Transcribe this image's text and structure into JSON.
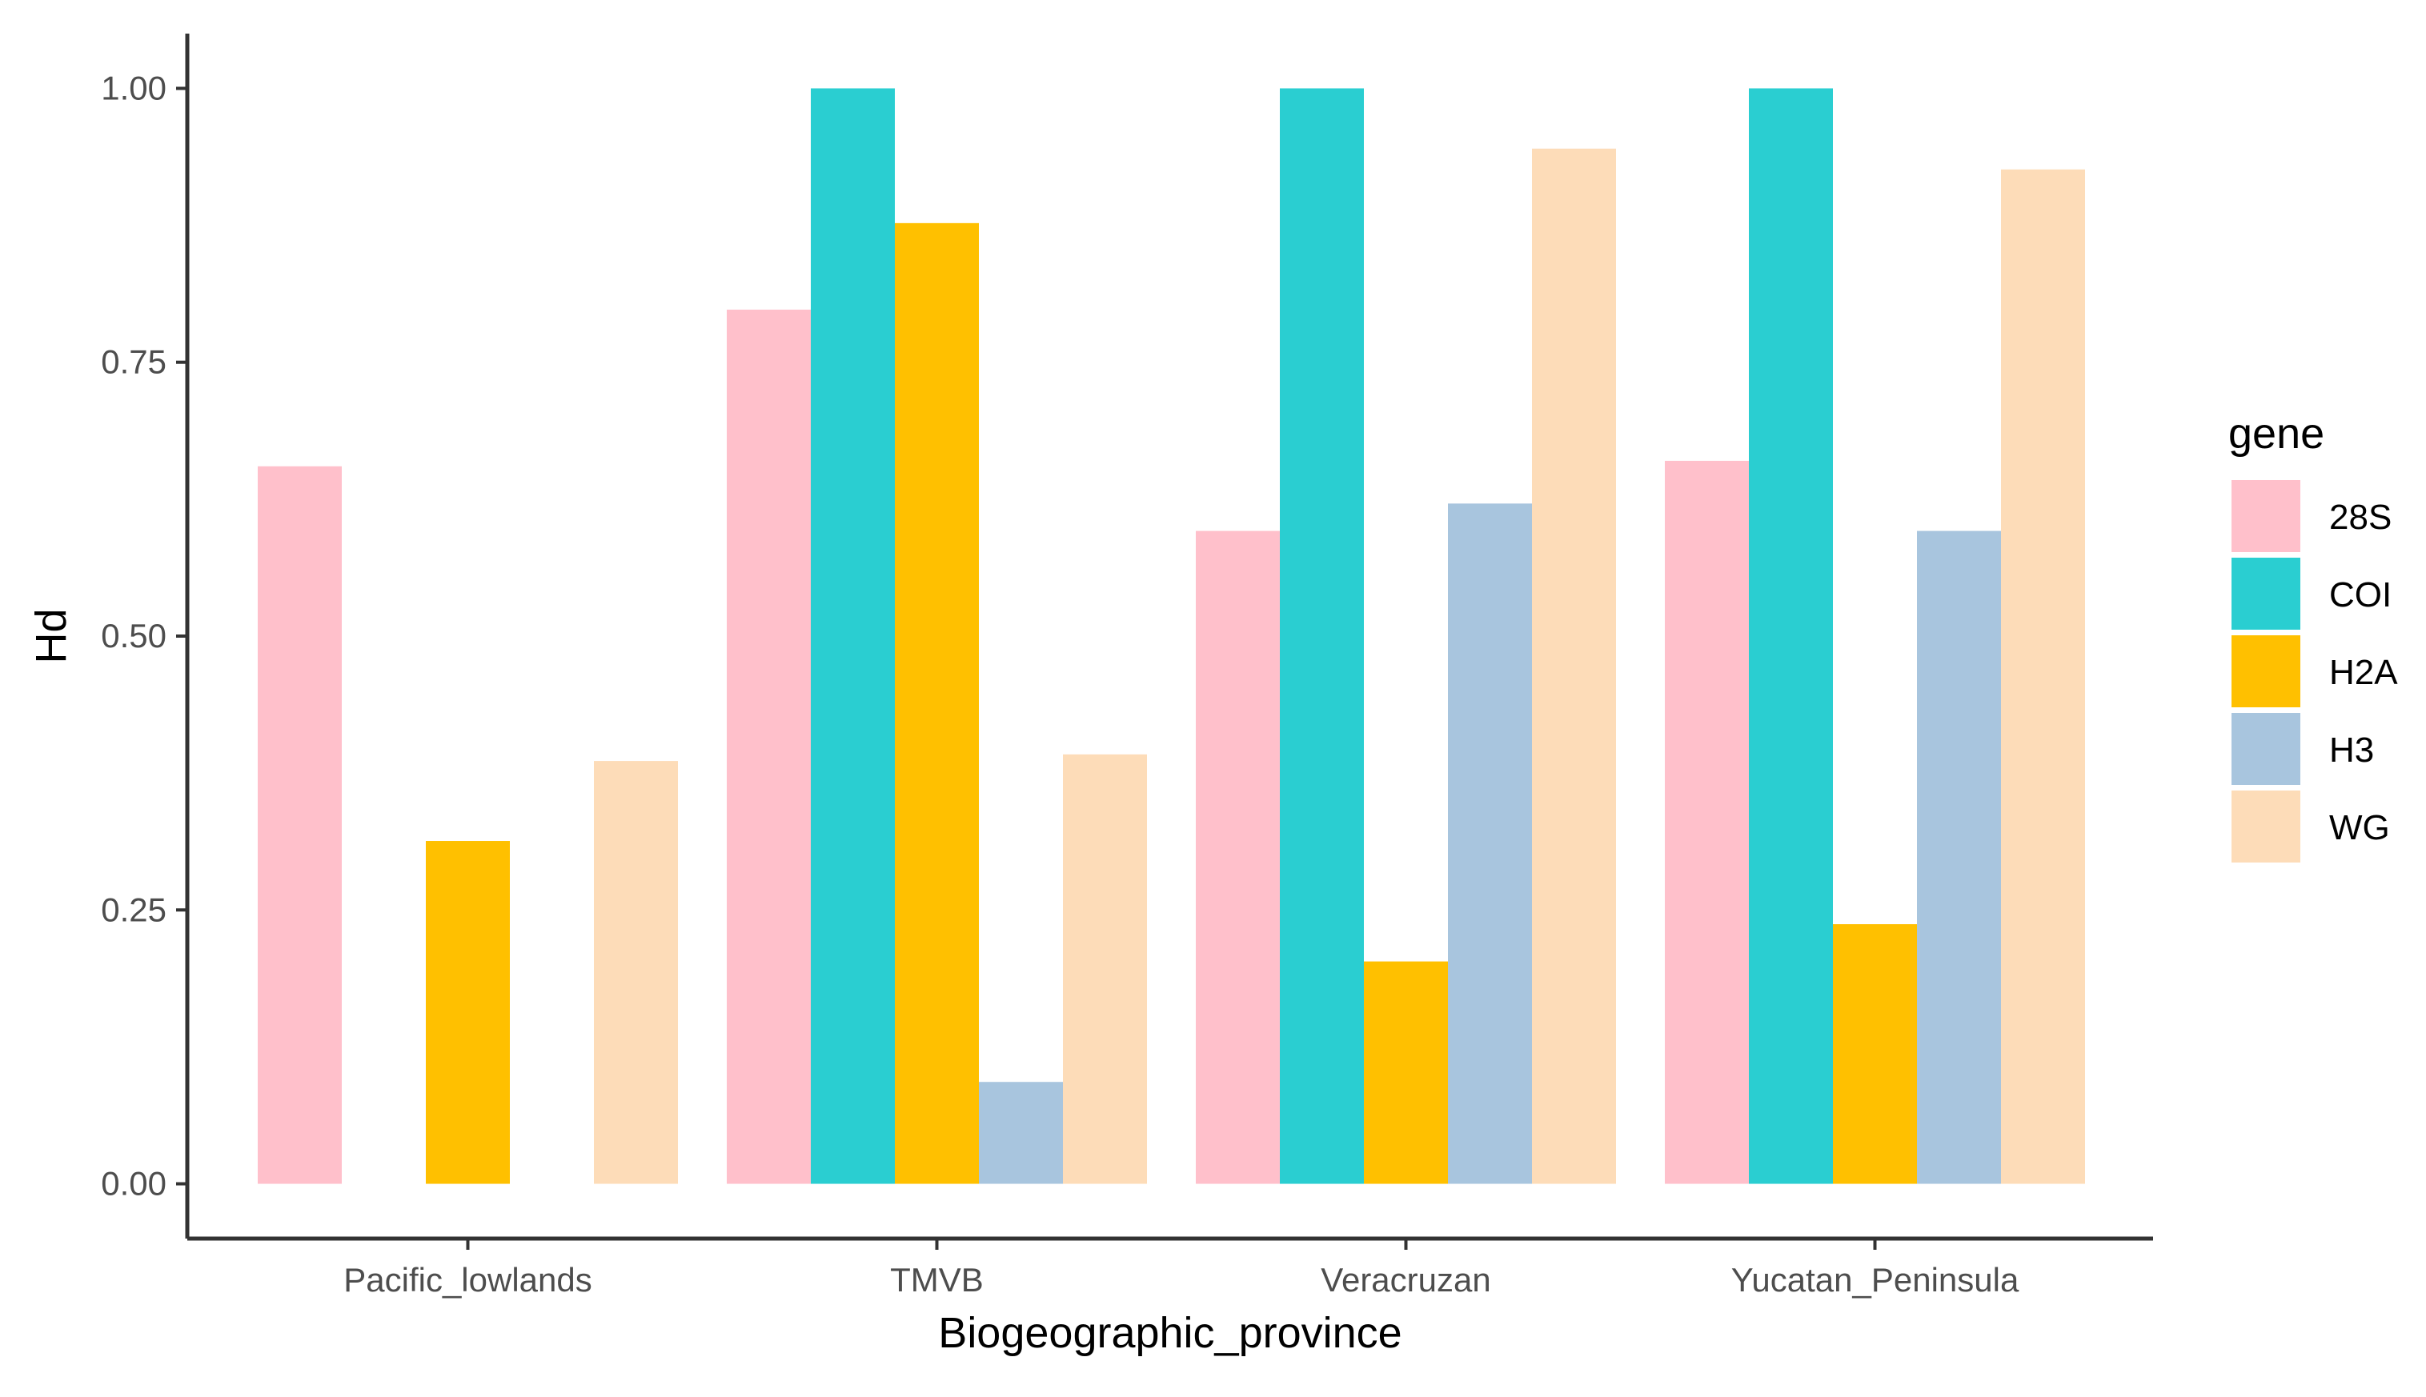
{
  "chart_data": {
    "type": "bar",
    "categories": [
      "Pacific_lowlands",
      "TMVB",
      "Veracruzan",
      "Yucatan_Peninsula"
    ],
    "series": [
      {
        "name": "28S",
        "color": "#FFC0CB",
        "values": [
          0.655,
          0.798,
          0.596,
          0.66
        ]
      },
      {
        "name": "COI",
        "color": "#2ACED1",
        "values": [
          0,
          1.0,
          1.0,
          1.0
        ]
      },
      {
        "name": "H2A",
        "color": "#FFC000",
        "values": [
          0.313,
          0.877,
          0.203,
          0.237
        ]
      },
      {
        "name": "H3",
        "color": "#A8C5DE",
        "values": [
          0,
          0.093,
          0.621,
          0.596
        ]
      },
      {
        "name": "WG",
        "color": "#FDDCB8",
        "values": [
          0.386,
          0.392,
          0.945,
          0.926
        ]
      }
    ],
    "xlabel": "Biogeographic_province",
    "ylabel": "Hd",
    "ylim": [
      -0.05,
      1.05
    ],
    "yticks": [
      0,
      0.25,
      0.5,
      0.75,
      1.0
    ],
    "ytick_labels": [
      "0.00",
      "0.25",
      "0.50",
      "0.75",
      "1.00"
    ],
    "legend_title": "gene",
    "legend_position": "right",
    "grid": false
  }
}
